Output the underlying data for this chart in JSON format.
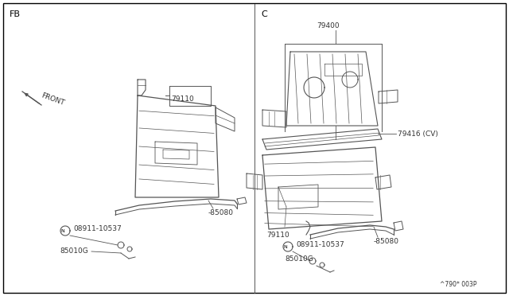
{
  "bg_color": "#ffffff",
  "line_color": "#555555",
  "text_color": "#333333",
  "fig_width": 6.4,
  "fig_height": 3.72,
  "dpi": 100,
  "diagram_code": "^790* 003P",
  "left_label": "FB",
  "right_label": "C"
}
